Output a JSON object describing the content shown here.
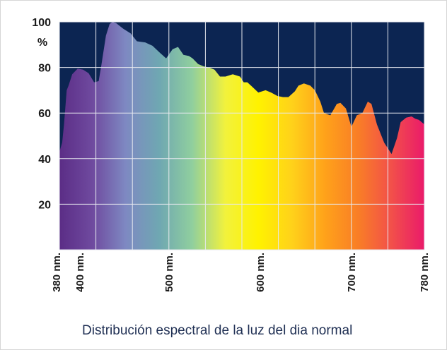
{
  "chart_data": {
    "type": "area",
    "title": "Distribución espectral de la luz del dia normal",
    "ylabel": "%",
    "xlim": [
      380,
      780
    ],
    "ylim": [
      0,
      100
    ],
    "y_ticks": [
      20,
      40,
      60,
      80,
      100
    ],
    "x_ticks": [
      380,
      400,
      500,
      600,
      700,
      780
    ],
    "x_tick_labels": [
      "380 nm.",
      "400 nm.",
      "500 nm.",
      "600 nm.",
      "700 nm.",
      "780 nm."
    ],
    "grid": true,
    "colors": {
      "background": "#0c2552",
      "grid": "#e7e9ef",
      "axis_text": "#1a1a1a",
      "spectrum": [
        "#5b2d86",
        "#6f4a9f",
        "#7e89c2",
        "#6fa7b2",
        "#90cf9e",
        "#f2f23c",
        "#fff200",
        "#ffd21a",
        "#ffa21a",
        "#f97e26",
        "#f2504a",
        "#ea1a6a"
      ]
    },
    "series": [
      {
        "x": [
          380,
          383,
          385,
          388,
          390,
          394,
          400,
          406,
          412,
          418,
          423,
          426,
          431,
          435,
          438,
          442,
          450,
          458,
          465,
          474,
          482,
          490,
          497,
          504,
          510,
          516,
          522,
          526,
          532,
          538,
          544,
          550,
          556,
          562,
          570,
          578,
          582,
          586,
          590,
          598,
          606,
          612,
          619,
          625,
          631,
          638,
          642,
          648,
          655,
          660,
          666,
          670,
          677,
          684,
          688,
          694,
          700,
          706,
          712,
          718,
          722,
          728,
          736,
          744,
          750,
          754,
          760,
          766,
          770,
          774,
          780
        ],
        "y": [
          43,
          47,
          55,
          70,
          72,
          77,
          79.5,
          79,
          77.5,
          73.5,
          74,
          81,
          94,
          99,
          100,
          99.5,
          97,
          95,
          91.5,
          91,
          89.5,
          86.5,
          84,
          88,
          89,
          85.5,
          85,
          84,
          81.5,
          80.5,
          80,
          79,
          76,
          76,
          77,
          76,
          73.5,
          73.5,
          72,
          69,
          70,
          69,
          67.5,
          67,
          67,
          69.5,
          72,
          73,
          72,
          70,
          65,
          60,
          59,
          64,
          64.5,
          62,
          54,
          59,
          60,
          65,
          64,
          55,
          47,
          42,
          49,
          56,
          58,
          58.5,
          57.5,
          57,
          55
        ]
      }
    ]
  }
}
